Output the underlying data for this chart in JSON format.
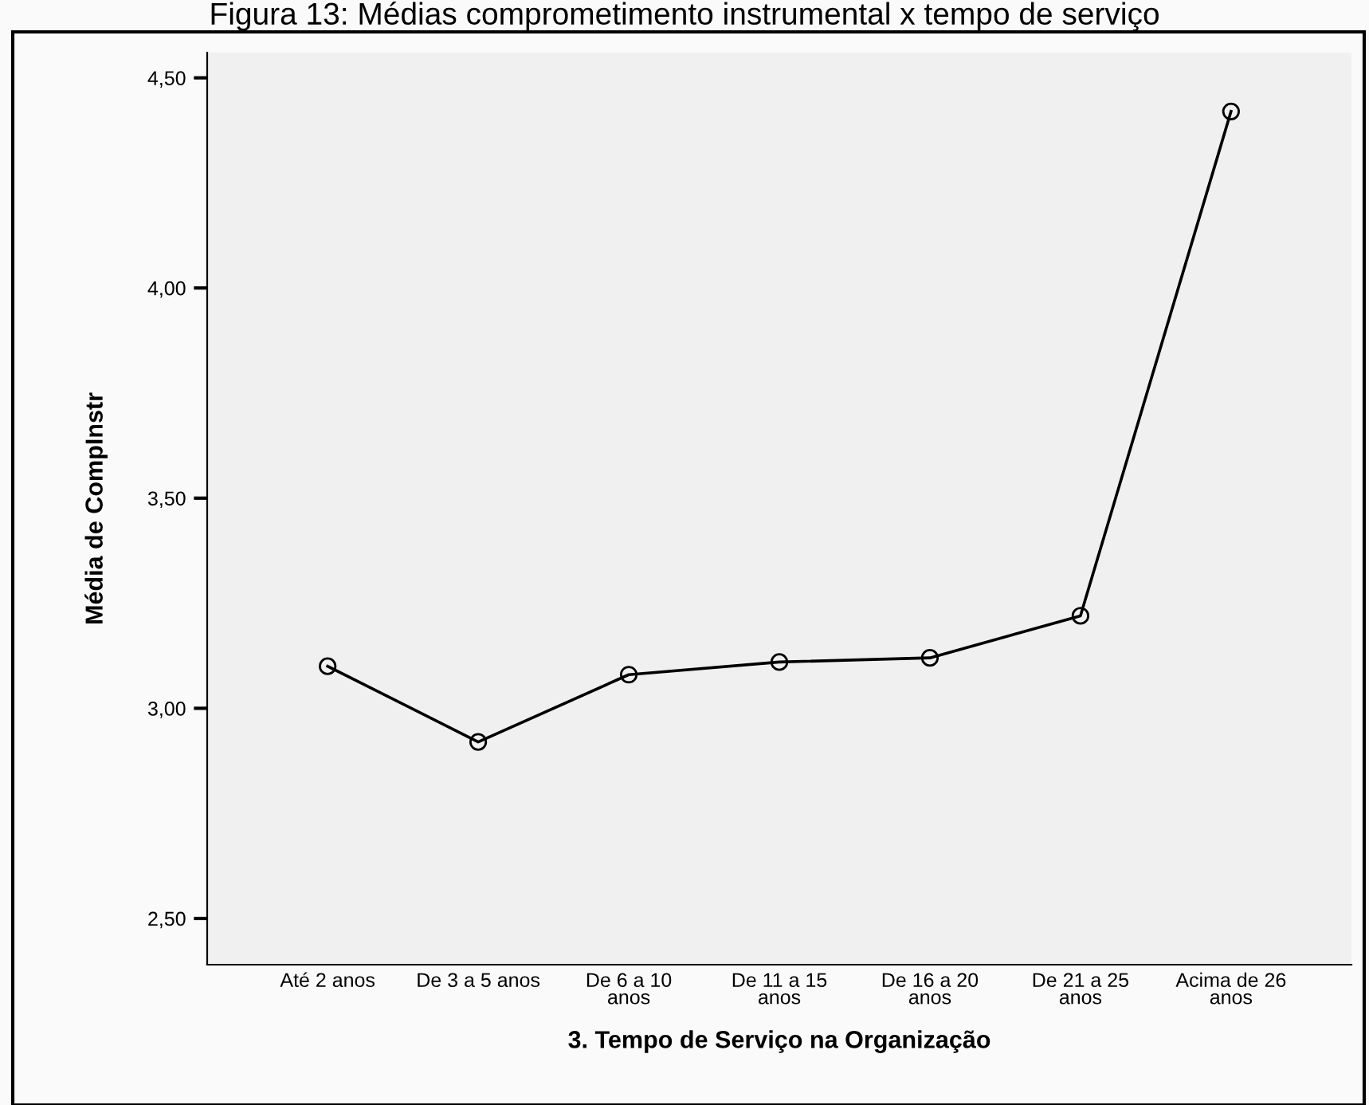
{
  "chart_data": {
    "type": "line",
    "title": "Figura 13: Médias comprometimento instrumental x tempo de serviço",
    "xlabel": "3. Tempo de Serviço na Organização",
    "ylabel": "Média de CompInstr",
    "categories": [
      "Até 2 anos",
      "De 3 a 5 anos",
      "De 6 a 10\nanos",
      "De 11 a 15\nanos",
      "De 16 a 20\nanos",
      "De 21 a 25\nanos",
      "Acima de 26\nanos"
    ],
    "series": [
      {
        "color": "#000000",
        "values": [
          3.1,
          2.92,
          3.08,
          3.11,
          3.12,
          3.22,
          4.42
        ]
      }
    ],
    "ylim": [
      2.39,
      4.56
    ],
    "yticks": [
      {
        "value": 2.5,
        "label": "2,50"
      },
      {
        "value": 3.0,
        "label": "3,00"
      },
      {
        "value": 3.5,
        "label": "3,50"
      },
      {
        "value": 4.0,
        "label": "4,00"
      },
      {
        "value": 4.5,
        "label": "4,50"
      }
    ],
    "marker": "circle",
    "line_style": "solid",
    "grid": false,
    "legend": false
  }
}
